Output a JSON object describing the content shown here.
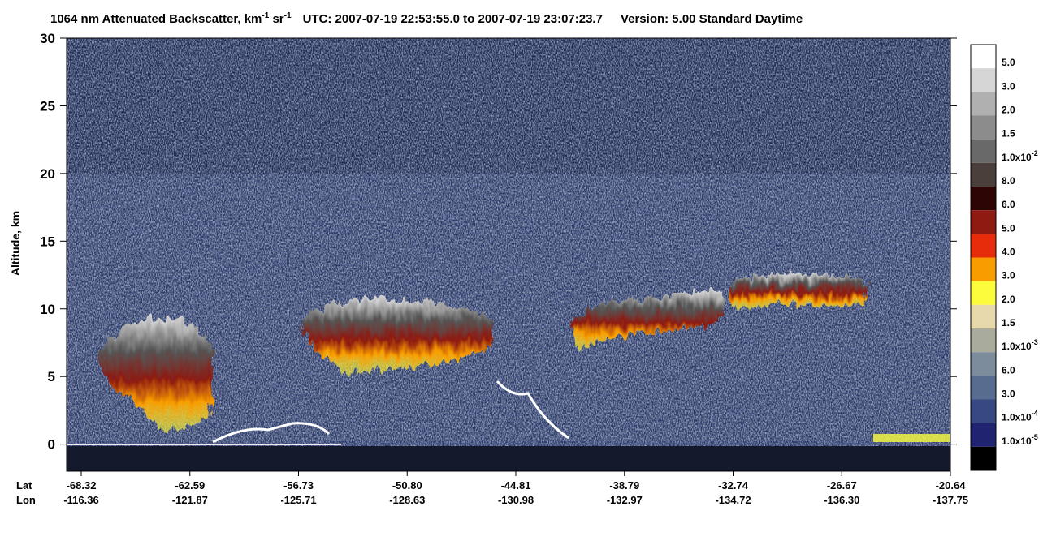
{
  "chart_data": {
    "type": "heatmap",
    "title_parts": [
      "1064 nm Attenuated Backscatter, km",
      "-1",
      " sr",
      "-1",
      "UTC:  2007-07-19 22:53:55.0  to  2007-07-19 23:07:23.7",
      "Version: 5.00  Standard  Daytime"
    ],
    "y_label": "Altitude, km",
    "ylim": [
      -2,
      30
    ],
    "yticks": [
      0,
      5,
      10,
      15,
      20,
      25,
      30
    ],
    "x_rows": [
      "Lat",
      "Lon"
    ],
    "lat_labels": [
      "-68.32",
      "-62.59",
      "-56.73",
      "-50.80",
      "-44.81",
      "-38.79",
      "-32.74",
      "-26.67",
      "-20.64"
    ],
    "lon_labels": [
      "-116.36",
      "-121.87",
      "-125.71",
      "-128.63",
      "-130.98",
      "-132.97",
      "-134.72",
      "-136.30",
      "-137.75"
    ],
    "colorbar": {
      "colors": [
        "#ffffff",
        "#d6d6d6",
        "#b0b0b0",
        "#8c8c8c",
        "#696969",
        "#4a3f3b",
        "#2e0505",
        "#8e1a12",
        "#e62c0a",
        "#f89c00",
        "#fcfc3c",
        "#e8d9ac",
        "#a9ab9d",
        "#7c8c9c",
        "#586c90",
        "#384880",
        "#202470",
        "#000000"
      ],
      "labels": [
        {
          "text": "5.0"
        },
        {
          "text": "3.0"
        },
        {
          "text": "2.0"
        },
        {
          "text": "1.5"
        },
        {
          "text": "1.0x10",
          "exp": "-2"
        },
        {
          "text": "8.0"
        },
        {
          "text": "6.0"
        },
        {
          "text": "5.0"
        },
        {
          "text": "4.0"
        },
        {
          "text": "3.0"
        },
        {
          "text": "2.0"
        },
        {
          "text": "1.5"
        },
        {
          "text": "1.0x10",
          "exp": "-3"
        },
        {
          "text": "6.0"
        },
        {
          "text": "3.0"
        },
        {
          "text": "1.0x10",
          "exp": "-4"
        },
        {
          "text": "1.0x10",
          "exp": "-5"
        }
      ]
    }
  }
}
